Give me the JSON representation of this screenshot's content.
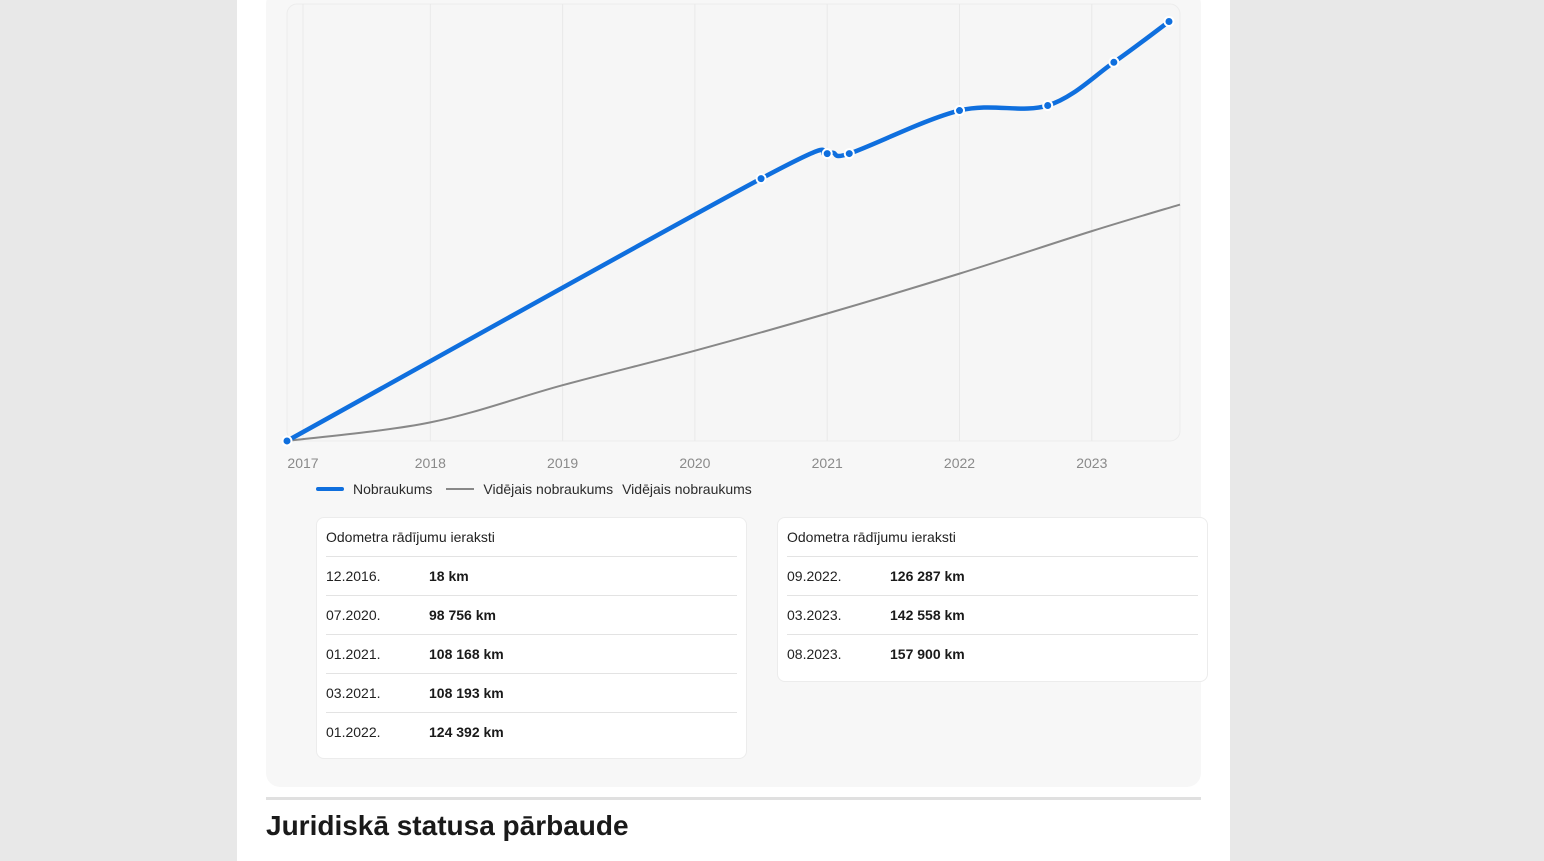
{
  "chart_data": {
    "type": "line",
    "x_ticks": [
      "2017",
      "2018",
      "2019",
      "2020",
      "2021",
      "2022",
      "2023"
    ],
    "series": [
      {
        "name": "Nobraukums",
        "color": "#0f6fde",
        "points": [
          {
            "x": "12.2016",
            "y": 18
          },
          {
            "x": "07.2020",
            "y": 98756
          },
          {
            "x": "01.2021",
            "y": 108168
          },
          {
            "x": "03.2021",
            "y": 108193
          },
          {
            "x": "01.2022",
            "y": 124392
          },
          {
            "x": "09.2022",
            "y": 126287
          },
          {
            "x": "03.2023",
            "y": 142558
          },
          {
            "x": "08.2023",
            "y": 157900
          }
        ]
      },
      {
        "name": "Vidējais nobraukums",
        "color": "#888888",
        "points": [
          {
            "x": "12.2016",
            "y": 0
          },
          {
            "x": "01.2018",
            "y": 7000
          },
          {
            "x": "01.2019",
            "y": 21000
          },
          {
            "x": "01.2020",
            "y": 34000
          },
          {
            "x": "01.2021",
            "y": 48000
          },
          {
            "x": "01.2022",
            "y": 63000
          },
          {
            "x": "01.2023",
            "y": 79000
          },
          {
            "x": "09.2023",
            "y": 89000
          }
        ]
      }
    ],
    "grid": true
  },
  "legend": {
    "items": [
      "Nobraukums",
      "Vidējais nobraukums"
    ],
    "extra_label": "Vidējais nobraukums"
  },
  "odometer_tables": [
    {
      "title": "Odometra rādījumu ieraksti",
      "rows": [
        {
          "date": "12.2016.",
          "km": "18 km"
        },
        {
          "date": "07.2020.",
          "km": "98 756 km"
        },
        {
          "date": "01.2021.",
          "km": "108 168 km"
        },
        {
          "date": "03.2021.",
          "km": "108 193 km"
        },
        {
          "date": "01.2022.",
          "km": "124 392 km"
        }
      ]
    },
    {
      "title": "Odometra rādījumu ieraksti",
      "rows": [
        {
          "date": "09.2022.",
          "km": "126 287 km"
        },
        {
          "date": "03.2023.",
          "km": "142 558 km"
        },
        {
          "date": "08.2023.",
          "km": "157 900 km"
        }
      ]
    }
  ],
  "section": {
    "title": "Juridiskā statusa pārbaude"
  }
}
